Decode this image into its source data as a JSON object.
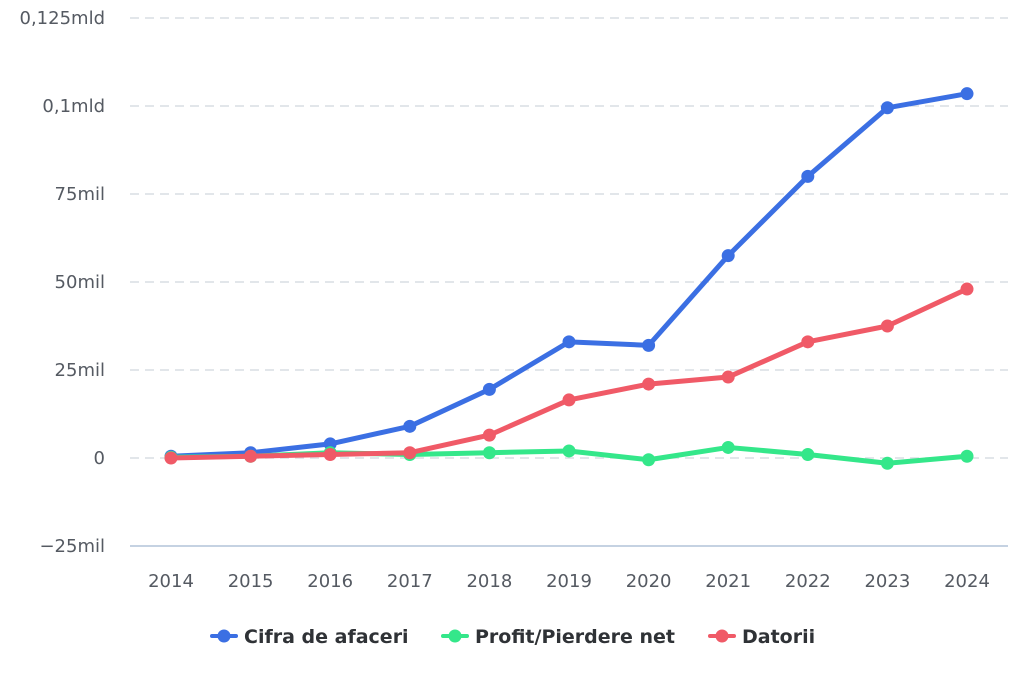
{
  "chart_data": {
    "type": "line",
    "title": "",
    "xlabel": "",
    "ylabel": "",
    "categories": [
      "2014",
      "2015",
      "2016",
      "2017",
      "2018",
      "2019",
      "2020",
      "2021",
      "2022",
      "2023",
      "2024"
    ],
    "ylim": [
      -25000000,
      125000000
    ],
    "y_ticks": [
      {
        "value": 125000000,
        "label": "0,125mld"
      },
      {
        "value": 100000000,
        "label": "0,1mld"
      },
      {
        "value": 75000000,
        "label": "75mil"
      },
      {
        "value": 50000000,
        "label": "50mil"
      },
      {
        "value": 25000000,
        "label": "25mil"
      },
      {
        "value": 0,
        "label": "0"
      },
      {
        "value": -25000000,
        "label": "−25mil"
      }
    ],
    "grid": true,
    "legend_position": "bottom-center",
    "series": [
      {
        "name": "Cifra de afaceri",
        "color": "#3b6fe3",
        "values": [
          500000,
          1500000,
          4000000,
          9000000,
          19500000,
          33000000,
          32000000,
          57500000,
          80000000,
          99500000,
          103500000
        ]
      },
      {
        "name": "Profit/Pierdere net",
        "color": "#34e78a",
        "values": [
          200000,
          500000,
          1500000,
          1000000,
          1500000,
          2000000,
          -500000,
          3000000,
          1000000,
          -1500000,
          500000
        ]
      },
      {
        "name": "Datorii",
        "color": "#f05a67",
        "values": [
          0,
          500000,
          1000000,
          1500000,
          6500000,
          16500000,
          21000000,
          23000000,
          33000000,
          37500000,
          48000000
        ]
      }
    ]
  }
}
